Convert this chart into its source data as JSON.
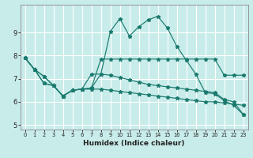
{
  "xlabel": "Humidex (Indice chaleur)",
  "bg_color": "#c8ecea",
  "grid_color": "#ffffff",
  "line_color": "#1a7a6e",
  "xlim": [
    -0.5,
    23.5
  ],
  "ylim": [
    4.8,
    10.2
  ],
  "yticks": [
    5,
    6,
    7,
    8,
    9
  ],
  "xticks": [
    0,
    1,
    2,
    3,
    4,
    5,
    6,
    7,
    8,
    9,
    10,
    11,
    12,
    13,
    14,
    15,
    16,
    17,
    18,
    19,
    20,
    21,
    22,
    23
  ],
  "line_peak": [
    7.9,
    7.4,
    7.1,
    6.7,
    6.25,
    6.5,
    6.55,
    6.6,
    7.2,
    9.05,
    9.6,
    8.85,
    9.25,
    9.55,
    9.7,
    9.2,
    8.4,
    7.8,
    7.2,
    6.4,
    6.35,
    6.05,
    5.85,
    5.45
  ],
  "line_mid": [
    7.9,
    7.4,
    7.1,
    6.7,
    6.25,
    6.5,
    6.55,
    6.6,
    7.85,
    7.85,
    7.85,
    7.85,
    7.85,
    7.85,
    7.85,
    7.85,
    7.85,
    7.85,
    7.85,
    7.85,
    7.85,
    7.15,
    7.15,
    7.15
  ],
  "line_low": [
    7.9,
    7.4,
    6.8,
    6.7,
    6.25,
    6.5,
    6.55,
    6.55,
    6.55,
    6.5,
    6.45,
    6.4,
    6.35,
    6.3,
    6.25,
    6.2,
    6.15,
    6.1,
    6.05,
    6.0,
    6.0,
    5.95,
    5.9,
    5.85
  ],
  "line_low2": [
    7.9,
    7.4,
    6.8,
    6.7,
    6.25,
    6.5,
    6.55,
    7.2,
    7.2,
    7.15,
    7.05,
    6.95,
    6.85,
    6.75,
    6.7,
    6.65,
    6.6,
    6.55,
    6.5,
    6.45,
    6.4,
    6.1,
    6.0,
    5.45
  ]
}
